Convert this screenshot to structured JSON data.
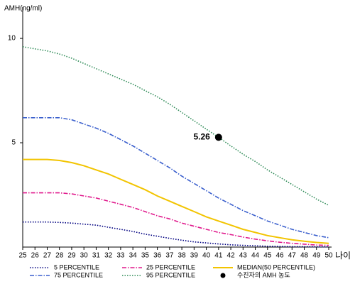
{
  "chart_data": {
    "type": "line",
    "y_label": "AMH(ng/ml)",
    "x_label": "나이",
    "x": [
      25,
      26,
      27,
      28,
      29,
      30,
      31,
      32,
      33,
      34,
      35,
      36,
      37,
      38,
      39,
      40,
      41,
      42,
      43,
      44,
      45,
      46,
      47,
      48,
      49,
      50
    ],
    "xlim": [
      25,
      50
    ],
    "xticks": [
      25,
      26,
      27,
      28,
      29,
      30,
      31,
      32,
      33,
      34,
      35,
      36,
      37,
      38,
      39,
      40,
      41,
      42,
      43,
      44,
      45,
      46,
      47,
      48,
      49,
      50
    ],
    "ylim": [
      0,
      11.5
    ],
    "yticks": [
      5,
      10
    ],
    "series": [
      {
        "name": "5 PERCENTILE",
        "color": "#000080",
        "style": "dotted",
        "values": [
          1.2,
          1.2,
          1.2,
          1.18,
          1.15,
          1.1,
          1.05,
          0.95,
          0.85,
          0.75,
          0.62,
          0.52,
          0.42,
          0.33,
          0.25,
          0.2,
          0.15,
          0.11,
          0.08,
          0.06,
          0.04,
          0.03,
          0.02,
          0.02,
          0.01,
          0.01
        ]
      },
      {
        "name": "25 PERCENTILE",
        "color": "#e0198c",
        "style": "dashdot",
        "values": [
          2.6,
          2.6,
          2.6,
          2.6,
          2.55,
          2.45,
          2.35,
          2.2,
          2.05,
          1.9,
          1.7,
          1.5,
          1.35,
          1.15,
          1.0,
          0.85,
          0.7,
          0.6,
          0.48,
          0.38,
          0.3,
          0.23,
          0.18,
          0.14,
          0.1,
          0.08
        ]
      },
      {
        "name": "MEDIAN(50 PERCENTILE)",
        "color": "#f2c400",
        "style": "solid",
        "values": [
          4.2,
          4.2,
          4.2,
          4.15,
          4.05,
          3.9,
          3.7,
          3.5,
          3.25,
          3.0,
          2.75,
          2.45,
          2.2,
          1.95,
          1.7,
          1.45,
          1.25,
          1.05,
          0.85,
          0.7,
          0.55,
          0.45,
          0.35,
          0.28,
          0.22,
          0.18
        ]
      },
      {
        "name": "75 PERCENTILE",
        "color": "#3a5fcd",
        "style": "dashdot",
        "values": [
          6.2,
          6.2,
          6.2,
          6.2,
          6.1,
          5.9,
          5.7,
          5.45,
          5.15,
          4.85,
          4.5,
          4.15,
          3.8,
          3.4,
          3.05,
          2.7,
          2.35,
          2.05,
          1.75,
          1.5,
          1.25,
          1.05,
          0.85,
          0.7,
          0.55,
          0.45
        ]
      },
      {
        "name": "95 PERCENTILE",
        "color": "#2e8b57",
        "style": "dotted",
        "values": [
          9.6,
          9.5,
          9.4,
          9.25,
          9.05,
          8.8,
          8.55,
          8.3,
          8.05,
          7.8,
          7.5,
          7.2,
          6.85,
          6.45,
          6.05,
          5.65,
          5.26,
          4.85,
          4.45,
          4.1,
          3.7,
          3.35,
          3.0,
          2.65,
          2.3,
          2.0
        ]
      }
    ],
    "points": [
      {
        "name": "수진자의 AMH 농도",
        "x": 41,
        "y": 5.26,
        "color": "#000000"
      }
    ]
  }
}
